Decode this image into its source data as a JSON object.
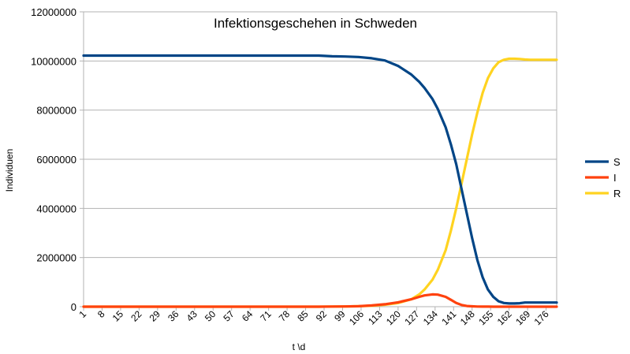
{
  "chart_data": {
    "type": "line",
    "title": "Infektionsgeschehen in Schweden",
    "xlabel": "t \\d",
    "ylabel": "Individuen",
    "ylim": [
      0,
      12000000
    ],
    "yticks": [
      "0",
      "2000000",
      "4000000",
      "6000000",
      "8000000",
      "10000000",
      "12000000"
    ],
    "xticks": [
      "1",
      "8",
      "15",
      "22",
      "29",
      "36",
      "43",
      "50",
      "57",
      "64",
      "71",
      "78",
      "85",
      "92",
      "99",
      "106",
      "113",
      "120",
      "127",
      "134",
      "141",
      "148",
      "155",
      "162",
      "169",
      "176"
    ],
    "xlim": [
      1,
      180
    ],
    "grid": "horizontal",
    "legend_position": "right",
    "x": [
      1,
      90,
      95,
      100,
      105,
      110,
      115,
      120,
      125,
      128,
      130,
      133,
      135,
      138,
      140,
      142,
      144,
      146,
      148,
      150,
      152,
      154,
      156,
      158,
      160,
      162,
      164,
      166,
      168,
      170,
      175,
      180
    ],
    "series": [
      {
        "name": "S",
        "color": "#004586",
        "values": [
          10220000,
          10220000,
          10190000,
          10180000,
          10160000,
          10110000,
          10020000,
          9800000,
          9450000,
          9150000,
          8900000,
          8450000,
          8050000,
          7300000,
          6600000,
          5800000,
          4800000,
          3800000,
          2800000,
          1900000,
          1200000,
          700000,
          400000,
          220000,
          150000,
          130000,
          130000,
          140000,
          170000,
          170000,
          170000,
          170000
        ]
      },
      {
        "name": "I",
        "color": "#ff420e",
        "values": [
          0,
          0,
          5000,
          10000,
          20000,
          50000,
          100000,
          180000,
          300000,
          400000,
          460000,
          500000,
          490000,
          400000,
          280000,
          150000,
          70000,
          30000,
          15000,
          8000,
          4000,
          2000,
          1000,
          500,
          300,
          200,
          100,
          100,
          100,
          100,
          100,
          100
        ]
      },
      {
        "name": "R",
        "color": "#ffd320",
        "values": [
          0,
          0,
          5000,
          10000,
          20000,
          40000,
          80000,
          150000,
          300000,
          500000,
          700000,
          1100000,
          1500000,
          2300000,
          3100000,
          4000000,
          5000000,
          6000000,
          7000000,
          7900000,
          8700000,
          9300000,
          9700000,
          9950000,
          10050000,
          10090000,
          10090000,
          10080000,
          10060000,
          10050000,
          10050000,
          10050000
        ]
      }
    ]
  }
}
